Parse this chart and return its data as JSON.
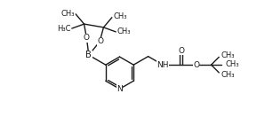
{
  "background_color": "#ffffff",
  "line_color": "#1a1a1a",
  "line_width": 1.0,
  "font_size": 6.5,
  "figsize": [
    3.07,
    1.41
  ],
  "dpi": 100,
  "xlim": [
    0,
    10.5
  ],
  "ylim": [
    0,
    4.6
  ]
}
